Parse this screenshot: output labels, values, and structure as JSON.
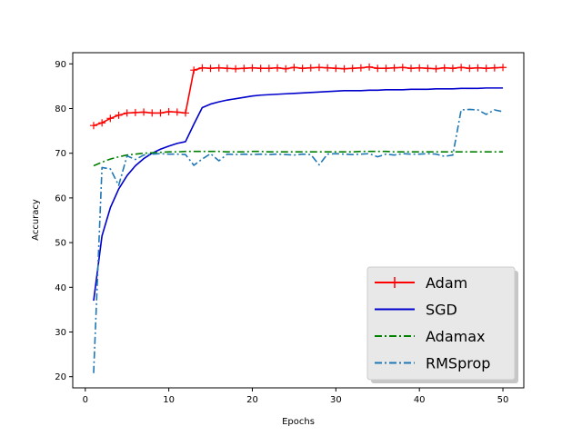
{
  "chart_data": {
    "type": "line",
    "xlabel": "Epochs",
    "ylabel": "Accuracy",
    "xlim": [
      -1.5,
      52.5
    ],
    "ylim": [
      17.5,
      92.5
    ],
    "xticks": [
      0,
      10,
      20,
      30,
      40,
      50
    ],
    "yticks": [
      20,
      30,
      40,
      50,
      60,
      70,
      80,
      90
    ],
    "grid": false,
    "legend_position": "bottom-right",
    "x": [
      1,
      2,
      3,
      4,
      5,
      6,
      7,
      8,
      9,
      10,
      11,
      12,
      13,
      14,
      15,
      16,
      17,
      18,
      19,
      20,
      21,
      22,
      23,
      24,
      25,
      26,
      27,
      28,
      29,
      30,
      31,
      32,
      33,
      34,
      35,
      36,
      37,
      38,
      39,
      40,
      41,
      42,
      43,
      44,
      45,
      46,
      47,
      48,
      49,
      50
    ],
    "series": [
      {
        "name": "Adam",
        "color": "#ff0000",
        "linestyle": "solid",
        "marker": "plus",
        "values": [
          76.2,
          76.8,
          77.8,
          78.5,
          79.0,
          79.1,
          79.2,
          79.0,
          79.0,
          79.3,
          79.2,
          79.0,
          88.6,
          89.1,
          89.0,
          89.1,
          89.0,
          88.9,
          89.0,
          89.1,
          89.0,
          89.0,
          89.1,
          88.9,
          89.2,
          89.0,
          89.1,
          89.2,
          89.1,
          89.0,
          88.9,
          89.0,
          89.1,
          89.3,
          89.0,
          89.0,
          89.1,
          89.2,
          89.0,
          89.1,
          89.0,
          88.9,
          89.1,
          89.0,
          89.2,
          89.0,
          89.1,
          89.0,
          89.1,
          89.2
        ]
      },
      {
        "name": "SGD",
        "color": "#0000cc",
        "linestyle": "solid",
        "marker": "none",
        "values": [
          37.0,
          51.5,
          57.8,
          62.0,
          65.0,
          67.2,
          68.8,
          70.0,
          70.9,
          71.6,
          72.2,
          72.6,
          76.5,
          80.2,
          81.0,
          81.5,
          81.9,
          82.2,
          82.5,
          82.8,
          83.0,
          83.1,
          83.2,
          83.3,
          83.4,
          83.5,
          83.6,
          83.7,
          83.8,
          83.9,
          84.0,
          84.0,
          84.0,
          84.1,
          84.1,
          84.2,
          84.2,
          84.2,
          84.3,
          84.3,
          84.3,
          84.4,
          84.4,
          84.4,
          84.5,
          84.5,
          84.5,
          84.6,
          84.6,
          84.6
        ]
      },
      {
        "name": "Adamax",
        "color": "#008000",
        "linestyle": "dashdot",
        "marker": "none",
        "values": [
          67.2,
          68.0,
          68.7,
          69.2,
          69.6,
          69.8,
          70.0,
          70.1,
          70.2,
          70.3,
          70.3,
          70.4,
          70.4,
          70.4,
          70.4,
          70.4,
          70.3,
          70.3,
          70.3,
          70.4,
          70.4,
          70.3,
          70.3,
          70.3,
          70.3,
          70.3,
          70.3,
          70.3,
          70.3,
          70.3,
          70.3,
          70.3,
          70.4,
          70.4,
          70.4,
          70.4,
          70.3,
          70.3,
          70.3,
          70.3,
          70.3,
          70.3,
          70.3,
          70.3,
          70.3,
          70.3,
          70.3,
          70.3,
          70.3,
          70.3
        ]
      },
      {
        "name": "RMSprop",
        "color": "#1f77b4",
        "linestyle": "dashdot",
        "marker": "none",
        "values": [
          20.8,
          66.8,
          66.5,
          62.8,
          69.4,
          68.6,
          69.6,
          69.8,
          69.9,
          69.8,
          69.8,
          69.7,
          67.3,
          68.7,
          69.9,
          68.3,
          69.8,
          69.7,
          69.8,
          69.7,
          69.8,
          69.7,
          69.8,
          69.7,
          69.6,
          69.8,
          69.7,
          67.4,
          69.8,
          69.9,
          69.8,
          69.7,
          69.8,
          69.9,
          69.2,
          69.8,
          69.6,
          69.9,
          69.8,
          69.8,
          69.9,
          69.8,
          69.3,
          69.6,
          79.7,
          79.8,
          79.7,
          78.7,
          79.7,
          79.3
        ]
      }
    ]
  }
}
